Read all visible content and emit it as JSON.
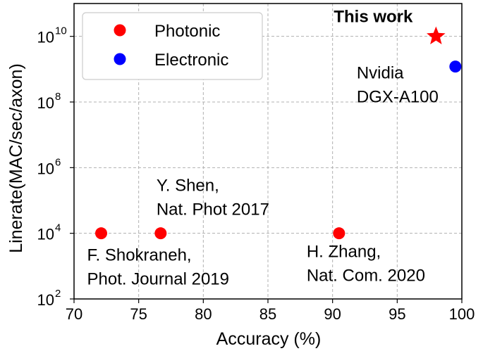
{
  "chart_data": {
    "type": "scatter",
    "xlabel": "Accuracy (%)",
    "ylabel": "Linerate(MAC/sec/axon)",
    "xlim": [
      70,
      100
    ],
    "ylim_log10": [
      2,
      11
    ],
    "y_scale": "log",
    "grid": true,
    "x_ticks": [
      "70",
      "75",
      "80",
      "85",
      "90",
      "95",
      "100"
    ],
    "y_ticks": [
      {
        "base": "10",
        "exp": "2"
      },
      {
        "base": "10",
        "exp": "4"
      },
      {
        "base": "10",
        "exp": "6"
      },
      {
        "base": "10",
        "exp": "8"
      },
      {
        "base": "10",
        "exp": "10"
      }
    ],
    "legend": {
      "placement": "top-left",
      "entries": [
        {
          "label": "Photonic",
          "color": "#ff0000"
        },
        {
          "label": "Electronic",
          "color": "#0000ff"
        }
      ]
    },
    "points": [
      {
        "x": 72.1,
        "y": 10000,
        "kind": "Photonic",
        "marker": "circle",
        "color": "#ff0000",
        "label": [
          "F. Shokraneh,",
          "Phot. Journal 2019"
        ]
      },
      {
        "x": 76.7,
        "y": 10000,
        "kind": "Photonic",
        "marker": "circle",
        "color": "#ff0000",
        "label": [
          "Y. Shen,",
          "Nat. Phot 2017"
        ]
      },
      {
        "x": 90.5,
        "y": 10000,
        "kind": "Photonic",
        "marker": "circle",
        "color": "#ff0000",
        "label": [
          "H. Zhang,",
          "Nat. Com. 2020"
        ]
      },
      {
        "x": 99.5,
        "y": 1200000000,
        "kind": "Electronic",
        "marker": "circle",
        "color": "#0000ff",
        "label": [
          "Nvidia",
          "DGX-A100"
        ]
      },
      {
        "x": 98.0,
        "y": 10000000000,
        "kind": "Photonic",
        "marker": "star",
        "color": "#ff0000",
        "label": [
          "This work"
        ]
      }
    ]
  }
}
